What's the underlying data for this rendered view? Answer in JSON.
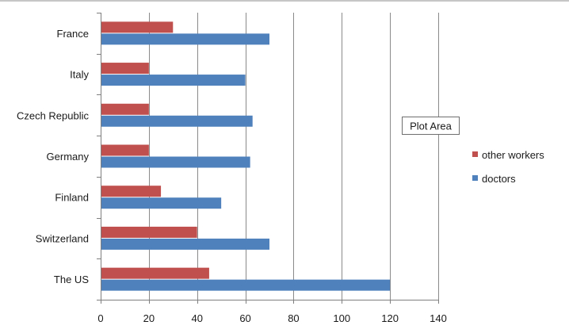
{
  "chart_data": {
    "type": "bar",
    "orientation": "horizontal",
    "categories": [
      "France",
      "Italy",
      "Czech Republic",
      "Germany",
      "Finland",
      "Switzerland",
      "The US"
    ],
    "series": [
      {
        "name": "other workers",
        "color": "#c0504d",
        "values": [
          30,
          20,
          20,
          20,
          25,
          40,
          45
        ]
      },
      {
        "name": "doctors",
        "color": "#4f81bd",
        "values": [
          70,
          60,
          63,
          62,
          50,
          70,
          120
        ]
      }
    ],
    "xlim": [
      0,
      140
    ],
    "xticks": [
      0,
      20,
      40,
      60,
      80,
      100,
      120,
      140
    ],
    "grid": true,
    "legend": {
      "position": "right",
      "order": [
        "other workers",
        "doctors"
      ]
    },
    "annotation": "Plot Area",
    "title": "",
    "xlabel": "",
    "ylabel": ""
  }
}
